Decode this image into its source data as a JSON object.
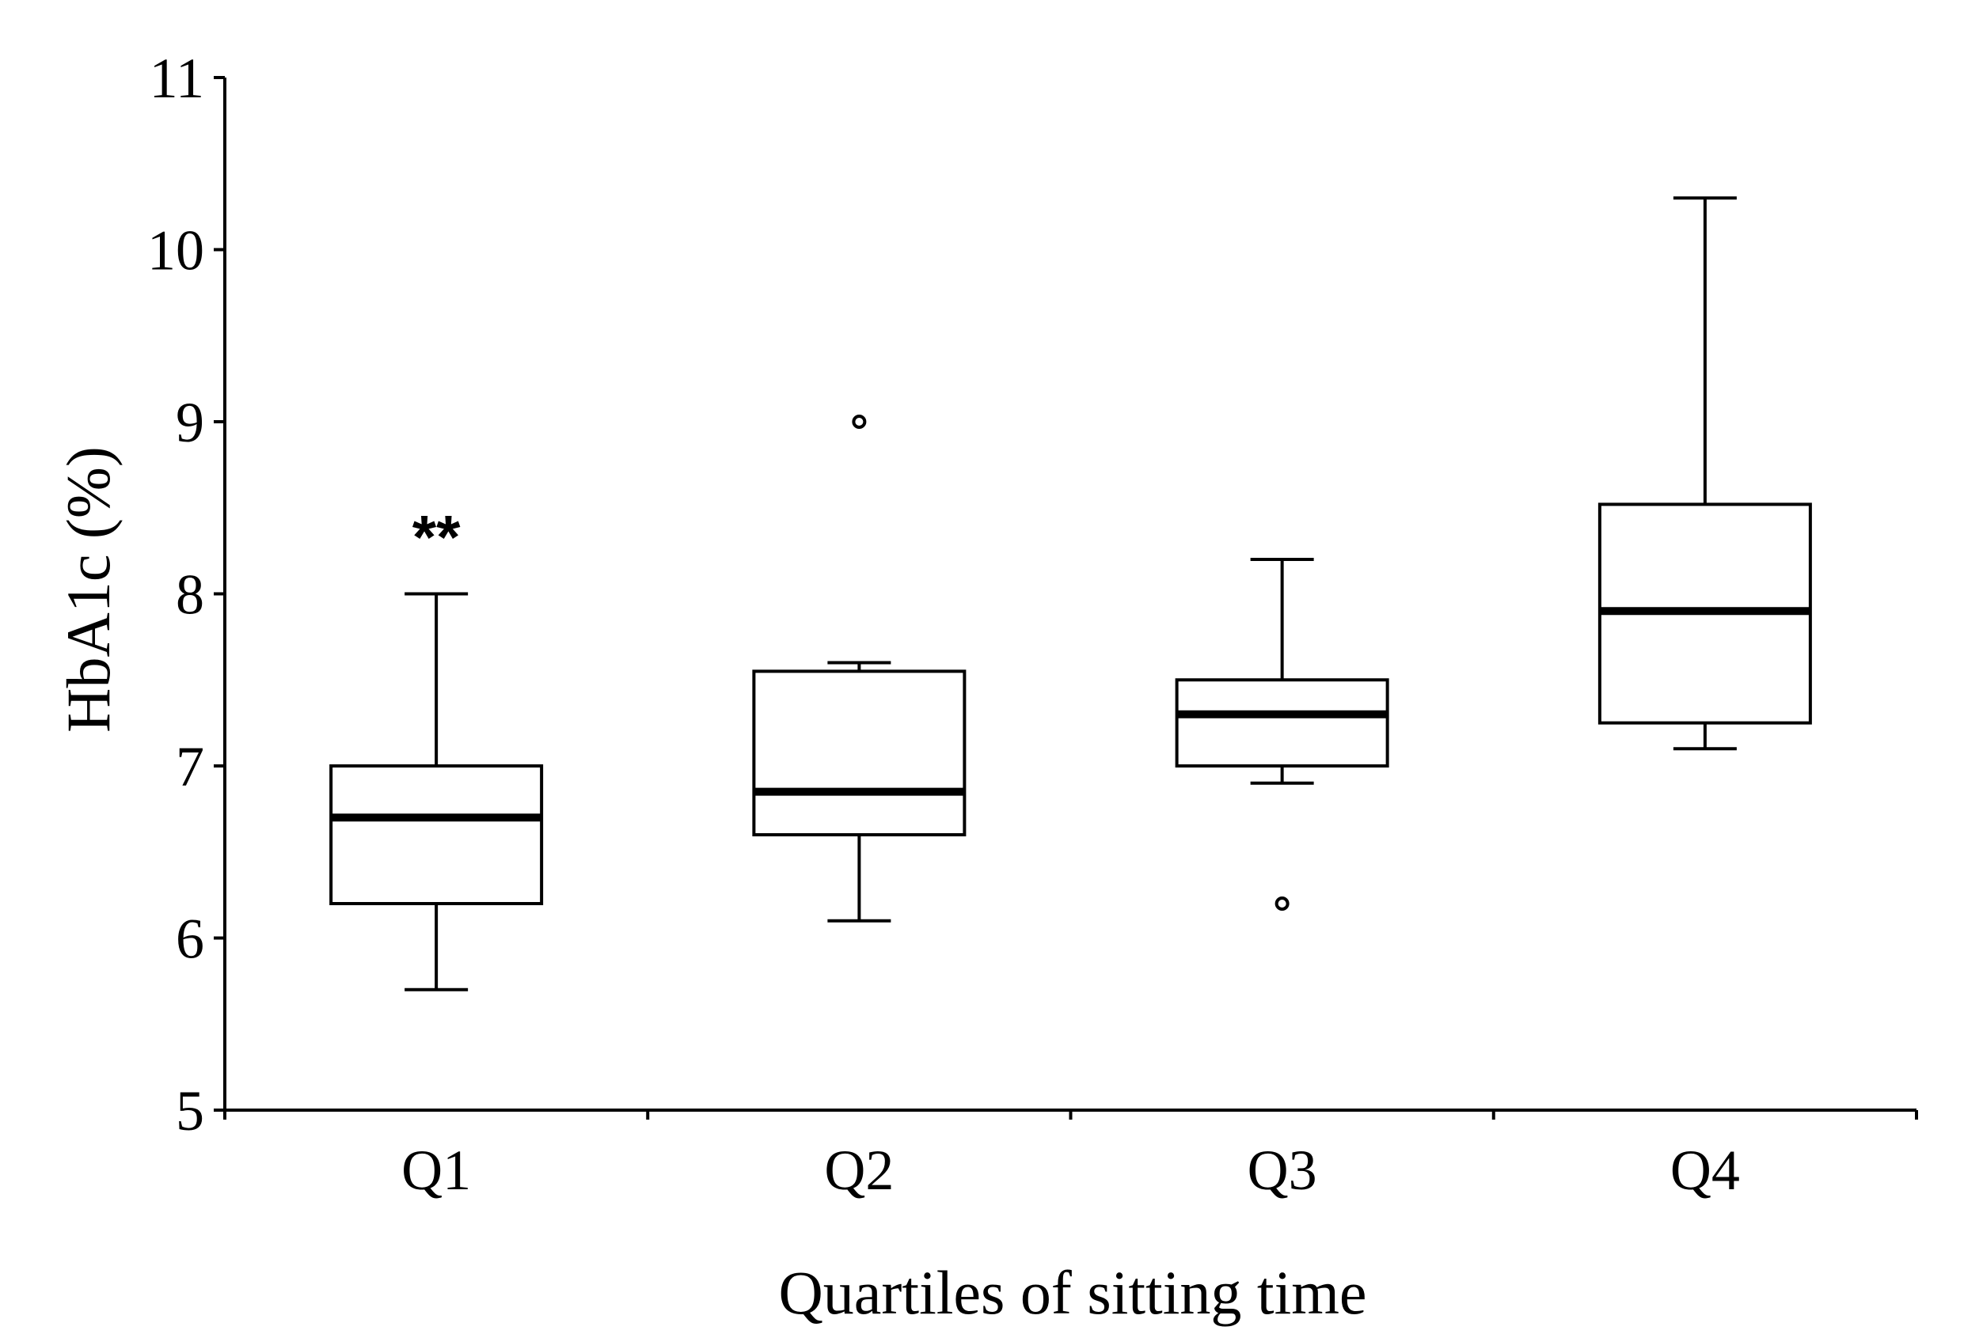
{
  "chart_data": {
    "type": "box",
    "xlabel": "Quartiles of sitting time",
    "ylabel": "HbA1c (%)",
    "ylim": [
      5,
      11
    ],
    "yticks": [
      5,
      6,
      7,
      8,
      9,
      10,
      11
    ],
    "categories": [
      "Q1",
      "Q2",
      "Q3",
      "Q4"
    ],
    "boxes": [
      {
        "category": "Q1",
        "whisker_low": 5.7,
        "q1": 6.2,
        "median": 6.7,
        "q3": 7.0,
        "whisker_high": 8.0,
        "outliers": [],
        "annotation": "**"
      },
      {
        "category": "Q2",
        "whisker_low": 6.1,
        "q1": 6.6,
        "median": 6.85,
        "q3": 7.55,
        "whisker_high": 7.6,
        "outliers": [
          9.0
        ],
        "annotation": ""
      },
      {
        "category": "Q3",
        "whisker_low": 6.9,
        "q1": 7.0,
        "median": 7.3,
        "q3": 7.5,
        "whisker_high": 8.2,
        "outliers": [
          6.2
        ],
        "annotation": ""
      },
      {
        "category": "Q4",
        "whisker_low": 7.1,
        "q1": 7.25,
        "median": 7.9,
        "q3": 8.52,
        "whisker_high": 10.3,
        "outliers": [],
        "annotation": ""
      }
    ],
    "grid": false,
    "legend": "none"
  }
}
